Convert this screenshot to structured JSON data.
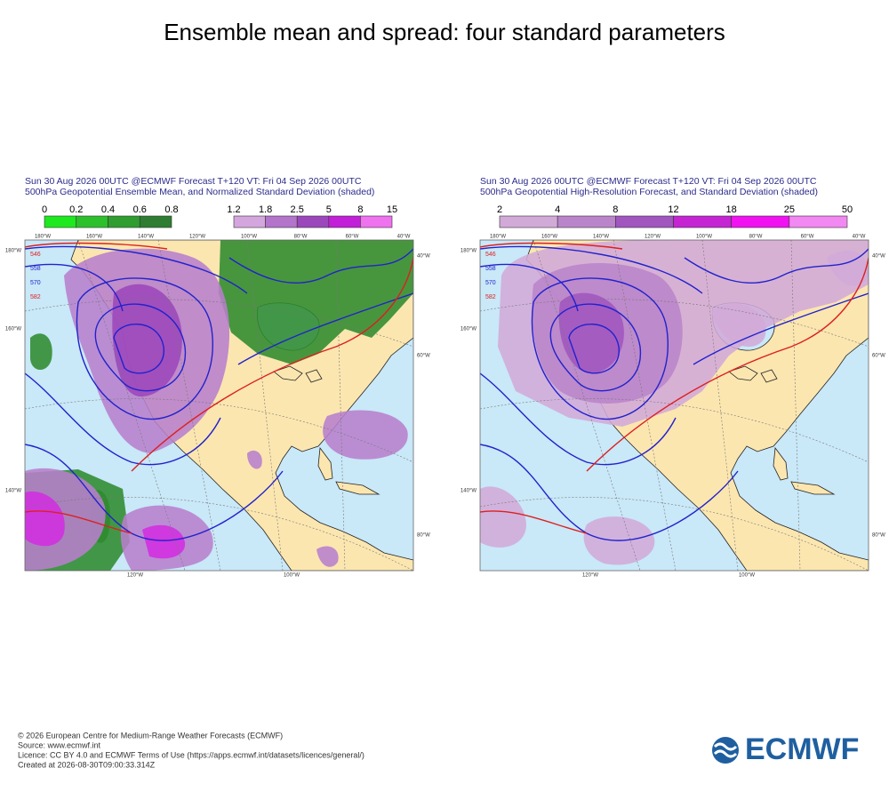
{
  "title": "Ensemble mean and spread: four standard parameters",
  "panels": [
    {
      "header": [
        "Sun 30 Aug 2026 00UTC @ECMWF Forecast T+120 VT: Fri 04 Sep 2026 00UTC",
        "500hPa Geopotential Ensemble Mean, and Normalized Standard Deviation (shaded)"
      ],
      "colorbars": [
        {
          "labels": [
            "0",
            "0.2",
            "0.4",
            "0.6",
            "0.8"
          ]
        },
        {
          "labels": [
            "1.2",
            "1.8",
            "2.5",
            "5",
            "8",
            "15"
          ]
        }
      ],
      "contour_labels": [
        "546",
        "558",
        "570",
        "582"
      ],
      "lon_labels_top": [
        "180°W",
        "160°W",
        "140°W",
        "120°W",
        "100°W",
        "80°W",
        "60°W",
        "40°W"
      ],
      "left_labels": [
        "180°W",
        "160°W",
        "140°W"
      ],
      "right_labels": [
        "40°W",
        "60°W",
        "80°W"
      ],
      "bottom_labels": [
        "120°W",
        "100°W"
      ]
    },
    {
      "header": [
        "Sun 30 Aug 2026 00UTC @ECMWF Forecast T+120 VT: Fri 04 Sep 2026 00UTC",
        "500hPa Geopotential High-Resolution Forecast, and Standard Deviation (shaded)"
      ],
      "colorbars": [
        {
          "labels": [
            "2",
            "4",
            "8",
            "12",
            "18",
            "25",
            "50"
          ]
        }
      ],
      "contour_labels": [
        "546",
        "558",
        "570",
        "582"
      ],
      "lon_labels_top": [
        "180°W",
        "160°W",
        "140°W",
        "120°W",
        "100°W",
        "80°W",
        "60°W",
        "40°W"
      ],
      "left_labels": [
        "180°W",
        "160°W",
        "140°W"
      ],
      "right_labels": [
        "40°W",
        "60°W",
        "80°W"
      ],
      "bottom_labels": [
        "120°W",
        "100°W"
      ]
    }
  ],
  "footer": {
    "lines": [
      "© 2026 European Centre for Medium-Range Weather Forecasts (ECMWF)",
      "Source: www.ecmwf.int",
      "Licence: CC BY 4.0 and ECMWF Terms of Use (https://apps.ecmwf.int/datasets/licences/general/)",
      "Created at 2026-08-30T09:00:33.314Z"
    ]
  },
  "logo": "ECMWF"
}
